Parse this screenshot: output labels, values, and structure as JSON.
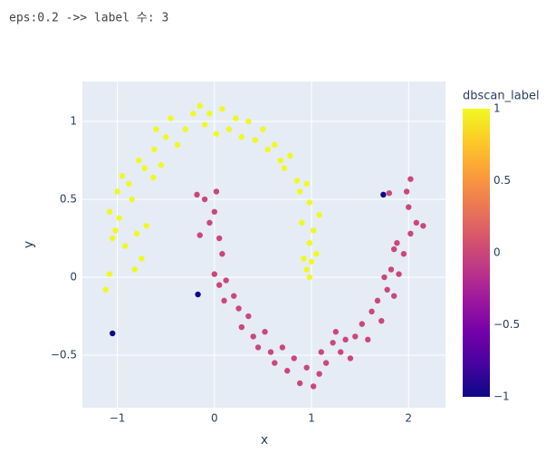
{
  "chart_data": {
    "type": "scatter",
    "title": "eps:0.2 ->> label 수: 3",
    "x_label": "x",
    "y_label": "y",
    "colorbar_title": "dbscan_label",
    "x": [
      -1.12,
      -1.08,
      -1.05,
      -1.02,
      -1.08,
      -0.98,
      -1.0,
      -0.95,
      -0.88,
      -0.85,
      -0.92,
      -0.8,
      -0.75,
      -0.7,
      -0.78,
      -0.72,
      -0.62,
      -0.55,
      -0.6,
      -0.5,
      -0.45,
      -0.38,
      -0.3,
      -0.22,
      -0.15,
      -0.1,
      -0.05,
      0.02,
      0.08,
      0.15,
      0.22,
      0.28,
      0.35,
      0.42,
      0.5,
      0.55,
      0.62,
      0.68,
      0.72,
      0.78,
      0.85,
      0.88,
      0.95,
      0.98,
      1.02,
      0.98,
      1.05,
      0.95,
      1.08,
      0.9,
      0.92,
      0.98,
      1.0,
      -0.82,
      -0.63,
      -0.18,
      -0.1,
      0.02,
      0.0,
      -0.05,
      0.05,
      -0.15,
      0.08,
      0.0,
      0.05,
      0.12,
      0.1,
      0.2,
      0.25,
      0.28,
      0.35,
      0.4,
      0.45,
      0.52,
      0.58,
      0.62,
      0.7,
      0.75,
      0.82,
      0.88,
      0.95,
      1.02,
      1.08,
      1.15,
      1.22,
      1.3,
      1.35,
      1.4,
      1.45,
      1.52,
      1.58,
      1.62,
      1.68,
      1.72,
      1.78,
      1.85,
      1.82,
      1.9,
      1.95,
      1.88,
      2.02,
      2.08,
      2.15,
      2.0,
      1.98,
      2.02,
      1.8,
      1.85,
      1.75,
      1.25,
      1.1,
      -1.05,
      -0.17,
      1.74
    ],
    "y": [
      -0.08,
      0.02,
      0.25,
      0.3,
      0.42,
      0.38,
      0.55,
      0.65,
      0.6,
      0.5,
      0.2,
      0.28,
      0.12,
      0.33,
      0.75,
      0.7,
      0.82,
      0.72,
      0.95,
      0.9,
      1.02,
      0.85,
      0.95,
      1.05,
      1.1,
      0.98,
      1.05,
      0.92,
      1.08,
      0.95,
      1.02,
      0.9,
      1.0,
      0.88,
      0.95,
      0.82,
      0.85,
      0.75,
      0.7,
      0.78,
      0.62,
      0.55,
      0.6,
      0.48,
      0.3,
      0.22,
      0.15,
      0.05,
      0.4,
      0.35,
      0.12,
      0.0,
      0.1,
      0.05,
      0.64,
      0.53,
      0.5,
      0.55,
      0.42,
      0.35,
      0.25,
      0.27,
      0.15,
      0.02,
      -0.05,
      -0.02,
      -0.15,
      -0.12,
      -0.2,
      -0.32,
      -0.25,
      -0.38,
      -0.45,
      -0.35,
      -0.48,
      -0.55,
      -0.45,
      -0.6,
      -0.52,
      -0.68,
      -0.58,
      -0.7,
      -0.62,
      -0.55,
      -0.42,
      -0.48,
      -0.4,
      -0.52,
      -0.38,
      -0.3,
      -0.4,
      -0.22,
      -0.15,
      -0.28,
      -0.08,
      -0.12,
      0.05,
      0.02,
      0.15,
      0.22,
      0.28,
      0.35,
      0.33,
      0.45,
      0.55,
      0.63,
      0.54,
      0.18,
      0.0,
      -0.35,
      -0.48,
      -0.36,
      -0.11,
      0.53
    ],
    "labels": [
      1,
      1,
      1,
      1,
      1,
      1,
      1,
      1,
      1,
      1,
      1,
      1,
      1,
      1,
      1,
      1,
      1,
      1,
      1,
      1,
      1,
      1,
      1,
      1,
      1,
      1,
      1,
      1,
      1,
      1,
      1,
      1,
      1,
      1,
      1,
      1,
      1,
      1,
      1,
      1,
      1,
      1,
      1,
      1,
      1,
      1,
      1,
      1,
      1,
      1,
      1,
      1,
      1,
      1,
      1,
      0,
      0,
      0,
      0,
      0,
      0,
      0,
      0,
      0,
      0,
      0,
      0,
      0,
      0,
      0,
      0,
      0,
      0,
      0,
      0,
      0,
      0,
      0,
      0,
      0,
      0,
      0,
      0,
      0,
      0,
      0,
      0,
      0,
      0,
      0,
      0,
      0,
      0,
      0,
      0,
      0,
      0,
      0,
      0,
      0,
      0,
      0,
      0,
      0,
      0,
      0,
      0,
      0,
      0,
      0,
      0,
      -1,
      -1,
      -1
    ],
    "colorscale": [
      "#0d0887",
      "#46039f",
      "#7201a8",
      "#9c179e",
      "#bd3786",
      "#d8576b",
      "#ed7953",
      "#fb9f3a",
      "#fdca26",
      "#f0f921"
    ],
    "xlim": [
      -1.36,
      2.38
    ],
    "ylim": [
      -0.837,
      1.256
    ],
    "clim": [
      -1,
      1
    ],
    "xticks": [
      {
        "value": -1,
        "label": "−1"
      },
      0,
      1,
      2
    ],
    "yticks": [
      {
        "value": -0.5,
        "label": "−0.5"
      },
      0,
      0.5,
      1
    ],
    "cticks": [
      {
        "value": -1,
        "label": "−1"
      },
      {
        "value": -0.5,
        "label": "−0.5"
      },
      0,
      0.5,
      1
    ],
    "grid": true,
    "plot_bgcolor": "#e5ecf6"
  }
}
